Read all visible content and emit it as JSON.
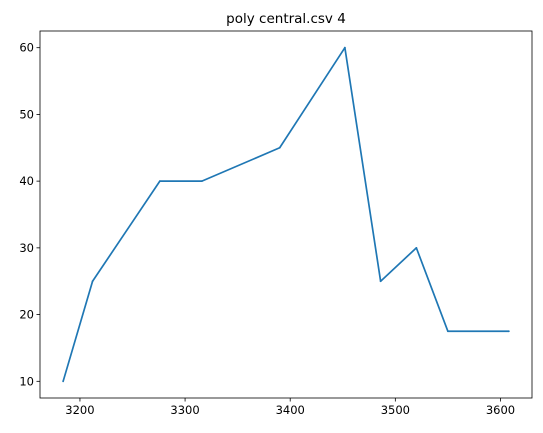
{
  "chart_data": {
    "type": "line",
    "title": "poly central.csv 4",
    "xlabel": "",
    "ylabel": "",
    "xlim": [
      3162,
      3630
    ],
    "ylim": [
      7.5,
      62.5
    ],
    "xticks": [
      3200,
      3300,
      3400,
      3500,
      3600
    ],
    "yticks": [
      10,
      20,
      30,
      40,
      50,
      60
    ],
    "grid": false,
    "series": [
      {
        "color": "#1f77b4",
        "x": [
          3184,
          3212,
          3276,
          3316,
          3390,
          3452,
          3486,
          3520,
          3550,
          3608
        ],
        "y": [
          10,
          25,
          40,
          40,
          45,
          60,
          25,
          30,
          17.5,
          17.5
        ]
      }
    ]
  }
}
